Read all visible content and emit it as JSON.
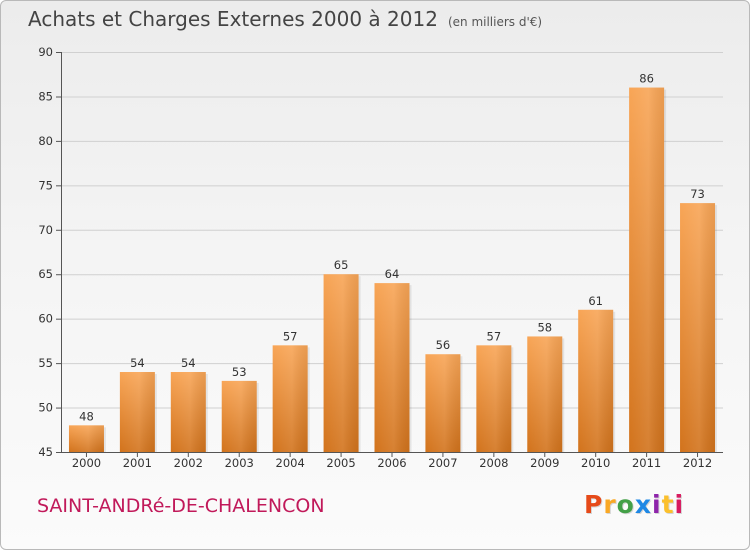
{
  "header": {
    "title": "Achats et Charges Externes 2000 à 2012",
    "subtitle": "(en milliers d'€)"
  },
  "footer": {
    "commune": "SAINT-ANDRé-DE-CHALENCON",
    "brand": "Proxiti"
  },
  "colors": {
    "bar_top": "#f8a556",
    "bar_bottom": "#d2731c",
    "commune": "#c1195a",
    "grid": "#d0d0d0",
    "logo_letters": [
      "#e64a19",
      "#f9a825",
      "#43a047",
      "#1e88e5",
      "#8e24aa",
      "#fbc02d",
      "#d81b60"
    ]
  },
  "chart_data": {
    "type": "bar",
    "title": "Achats et Charges Externes 2000 à 2012",
    "subtitle": "(en milliers d'€)",
    "categories": [
      "2000",
      "2001",
      "2002",
      "2003",
      "2004",
      "2005",
      "2006",
      "2007",
      "2008",
      "2009",
      "2010",
      "2011",
      "2012"
    ],
    "values": [
      48,
      54,
      54,
      53,
      57,
      65,
      64,
      56,
      57,
      58,
      61,
      86,
      73
    ],
    "data_labels": [
      "48",
      "54",
      "54",
      "53",
      "57",
      "65",
      "64",
      "56",
      "57",
      "58",
      "61",
      "86",
      "73"
    ],
    "ylim": [
      45,
      90
    ],
    "yticks": [
      45,
      50,
      55,
      60,
      65,
      70,
      75,
      80,
      85,
      90
    ],
    "ytick_labels": [
      "45",
      "50",
      "55",
      "60",
      "65",
      "70",
      "75",
      "80",
      "85",
      "90"
    ],
    "grid": true,
    "legend": "none",
    "xlabel": "",
    "ylabel": ""
  }
}
